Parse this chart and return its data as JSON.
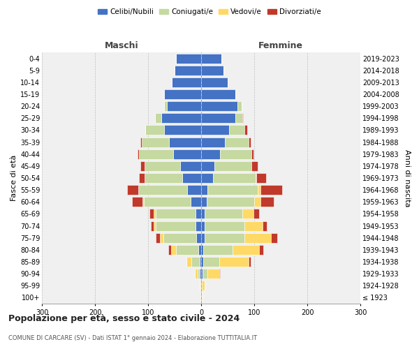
{
  "age_groups": [
    "100+",
    "95-99",
    "90-94",
    "85-89",
    "80-84",
    "75-79",
    "70-74",
    "65-69",
    "60-64",
    "55-59",
    "50-54",
    "45-49",
    "40-44",
    "35-39",
    "30-34",
    "25-29",
    "20-24",
    "15-19",
    "10-14",
    "5-9",
    "0-4"
  ],
  "birth_years": [
    "≤ 1923",
    "1924-1928",
    "1929-1933",
    "1934-1938",
    "1939-1943",
    "1944-1948",
    "1949-1953",
    "1954-1958",
    "1959-1963",
    "1964-1968",
    "1969-1973",
    "1974-1978",
    "1979-1983",
    "1984-1988",
    "1989-1993",
    "1994-1998",
    "1999-2003",
    "2004-2008",
    "2009-2013",
    "2014-2018",
    "2019-2023"
  ],
  "colors": {
    "celibi": "#4472c4",
    "coniugati": "#c5d9a0",
    "vedovi": "#ffd966",
    "divorziati": "#c0392b"
  },
  "maschi": {
    "celibi": [
      1,
      1,
      2,
      3,
      5,
      9,
      10,
      11,
      20,
      26,
      35,
      40,
      52,
      60,
      70,
      75,
      65,
      70,
      55,
      50,
      48
    ],
    "coniugati": [
      0,
      0,
      5,
      15,
      42,
      62,
      75,
      75,
      88,
      92,
      72,
      67,
      65,
      52,
      35,
      12,
      5,
      0,
      0,
      0,
      0
    ],
    "vedovi": [
      0,
      2,
      5,
      10,
      10,
      7,
      5,
      3,
      2,
      1,
      0,
      0,
      0,
      0,
      0,
      0,
      0,
      0,
      0,
      0,
      0
    ],
    "divorziati": [
      0,
      0,
      0,
      0,
      5,
      8,
      5,
      8,
      20,
      20,
      10,
      8,
      3,
      2,
      0,
      0,
      0,
      0,
      0,
      0,
      0
    ]
  },
  "femmine": {
    "celibi": [
      1,
      1,
      2,
      4,
      4,
      6,
      6,
      7,
      10,
      12,
      22,
      25,
      35,
      45,
      52,
      65,
      68,
      65,
      50,
      42,
      38
    ],
    "coniugati": [
      0,
      0,
      10,
      30,
      55,
      75,
      75,
      70,
      90,
      95,
      80,
      70,
      60,
      45,
      30,
      12,
      8,
      0,
      0,
      0,
      0
    ],
    "vedovi": [
      2,
      5,
      22,
      55,
      50,
      50,
      35,
      22,
      12,
      5,
      2,
      0,
      0,
      0,
      0,
      0,
      0,
      0,
      0,
      0,
      0
    ],
    "divorziati": [
      0,
      0,
      2,
      5,
      8,
      12,
      8,
      10,
      25,
      40,
      18,
      12,
      4,
      3,
      5,
      2,
      0,
      0,
      0,
      0,
      0
    ]
  },
  "xlim": 300,
  "title": "Popolazione per età, sesso e stato civile - 2024",
  "subtitle": "COMUNE DI CARCARE (SV) - Dati ISTAT 1° gennaio 2024 - Elaborazione TUTTITALIA.IT",
  "ylabel_left": "Fasce di età",
  "ylabel_right": "Anni di nascita",
  "xlabel_left": "Maschi",
  "xlabel_right": "Femmine",
  "legend_labels": [
    "Celibi/Nubili",
    "Coniugati/e",
    "Vedovi/e",
    "Divorziati/e"
  ],
  "bg_color": "#f0f0f0"
}
